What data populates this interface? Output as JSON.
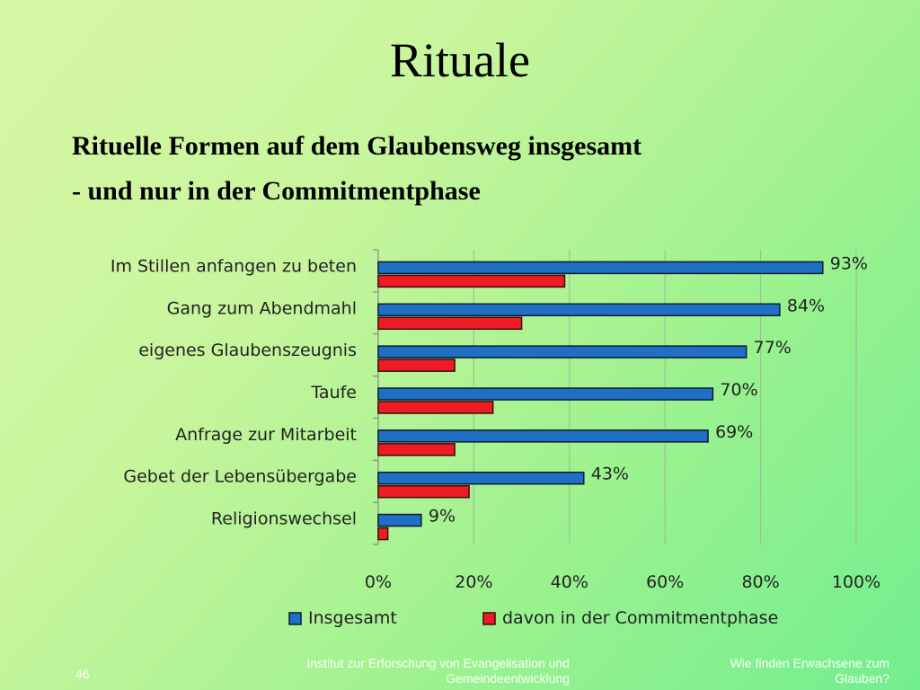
{
  "slide": {
    "title": "Rituale",
    "subtitle_line1": "Rituelle Formen auf dem Glaubensweg insgesamt",
    "subtitle_line2": "- und nur in der Commitmentphase",
    "page_number": "46",
    "footer_left": "Institut zur Erforschung von Evangelisation und Gemeindeentwicklung",
    "footer_right": "Wie finden Erwachsene zum Glauben?"
  },
  "chart_data": {
    "type": "bar",
    "orientation": "horizontal",
    "categories": [
      "Im Stillen anfangen zu beten",
      "Gang zum Abendmahl",
      "eigenes Glaubenszeugnis",
      "Taufe",
      "Anfrage zur Mitarbeit",
      "Gebet der Lebensübergabe",
      "Religionswechsel"
    ],
    "series": [
      {
        "name": "Insgesamt",
        "color": "#1f6fc4",
        "values": [
          93,
          84,
          77,
          70,
          69,
          43,
          9
        ],
        "data_labels": [
          "93%",
          "84%",
          "77%",
          "70%",
          "69%",
          "43%",
          "9%"
        ]
      },
      {
        "name": "davon in der Commitmentphase",
        "color": "#ee1c24",
        "values": [
          39,
          30,
          16,
          24,
          16,
          19,
          2
        ]
      }
    ],
    "xlim": [
      0,
      100
    ],
    "x_ticks": [
      "0%",
      "20%",
      "40%",
      "60%",
      "80%",
      "100%"
    ],
    "grid": true,
    "legend_position": "bottom"
  }
}
